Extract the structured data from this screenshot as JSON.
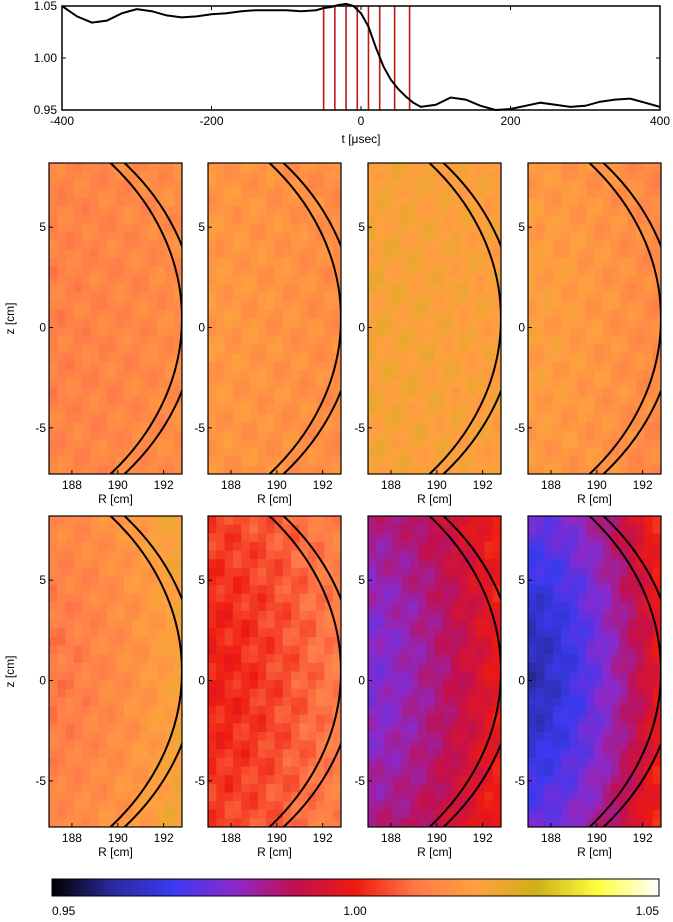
{
  "chart_data": [
    {
      "type": "line",
      "xlabel": "t  [μsec]",
      "xlim": [
        -400,
        400
      ],
      "ylim": [
        0.95,
        1.05
      ],
      "xticks": [
        "-400",
        "-200",
        "0",
        "200",
        "400"
      ],
      "yticks": [
        "0.95",
        "1.00",
        "1.05"
      ],
      "x": [
        -400,
        -380,
        -360,
        -340,
        -320,
        -300,
        -280,
        -260,
        -240,
        -220,
        -200,
        -180,
        -160,
        -140,
        -120,
        -100,
        -80,
        -60,
        -50,
        -40,
        -30,
        -20,
        -10,
        0,
        10,
        20,
        30,
        40,
        50,
        60,
        70,
        80,
        100,
        120,
        140,
        160,
        180,
        200,
        220,
        240,
        260,
        280,
        300,
        320,
        340,
        360,
        380,
        400
      ],
      "y": [
        1.05,
        1.04,
        1.034,
        1.036,
        1.043,
        1.047,
        1.045,
        1.041,
        1.039,
        1.04,
        1.042,
        1.043,
        1.045,
        1.046,
        1.046,
        1.046,
        1.045,
        1.046,
        1.048,
        1.049,
        1.051,
        1.052,
        1.05,
        1.043,
        1.03,
        1.01,
        0.992,
        0.979,
        0.97,
        0.963,
        0.957,
        0.953,
        0.955,
        0.962,
        0.96,
        0.954,
        0.95,
        0.951,
        0.954,
        0.957,
        0.955,
        0.953,
        0.954,
        0.958,
        0.96,
        0.961,
        0.957,
        0.953
      ],
      "markers": [
        -50,
        -35,
        -20,
        -5,
        10,
        25,
        45,
        65
      ],
      "marker_color": "#c01818",
      "line_color": "#000000"
    },
    {
      "type": "heatmap",
      "xlabel": "R  [cm]",
      "ylabel": "z  [cm]",
      "xlim": [
        187,
        192.8
      ],
      "ylim": [
        -7.3,
        8.2
      ],
      "xticks": [
        "188",
        "190",
        "192"
      ],
      "yticks": [
        "5",
        "0",
        "-5"
      ],
      "panels": [
        {
          "row": 0,
          "col": 0,
          "center": 1.012,
          "hot_edge": 1.015
        },
        {
          "row": 0,
          "col": 1,
          "center": 1.018,
          "hot_edge": 1.015
        },
        {
          "row": 0,
          "col": 2,
          "center": 1.022,
          "hot_edge": 1.02
        },
        {
          "row": 0,
          "col": 3,
          "center": 1.02,
          "hot_edge": 1.014
        },
        {
          "row": 1,
          "col": 0,
          "center": 1.01,
          "hot_edge": 1.022
        },
        {
          "row": 1,
          "col": 1,
          "center": 1.0,
          "hot_edge": 1.012
        },
        {
          "row": 1,
          "col": 2,
          "center": 0.978,
          "hot_edge": 1.0
        },
        {
          "row": 1,
          "col": 3,
          "center": 0.962,
          "hot_edge": 1.0
        }
      ]
    },
    {
      "type": "colorbar",
      "range": [
        0.95,
        1.05
      ],
      "ticks": [
        "0.95",
        "1.00",
        "1.05"
      ],
      "stops": [
        "#000000",
        "#2a2a9e",
        "#3a3af0",
        "#8a2acc",
        "#c01050",
        "#ee1a10",
        "#ff7a4a",
        "#ffa040",
        "#cfb018",
        "#ffff40",
        "#ffffff"
      ]
    }
  ]
}
